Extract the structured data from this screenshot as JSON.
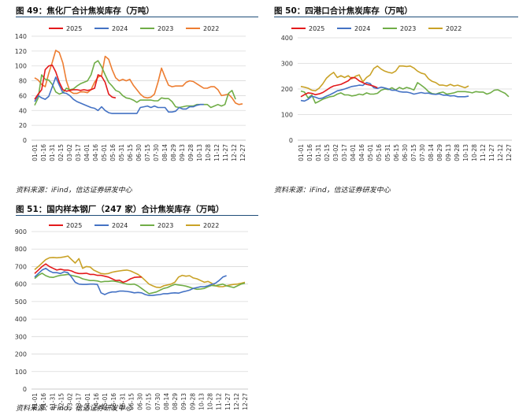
{
  "charts": [
    {
      "figure_title": "图 49：焦化厂合计焦炭库存（万吨）",
      "source": "资料来源：iFind，信达证券研发中心"
    },
    {
      "figure_title": "图 50：四港口合计焦炭库存（万吨）",
      "source": "资料来源：iFind，信达证券研发中心"
    },
    {
      "figure_title": "图 51：国内样本钢厂（247 家）合计焦炭库存（万吨）",
      "source": "资料来源：iFind，信达证券研发中心"
    }
  ],
  "chart_data": [
    {
      "type": "line",
      "title": "图 49：焦化厂合计焦炭库存（万吨）",
      "xlabel": "",
      "ylabel": "",
      "ylim": [
        0,
        140
      ],
      "yticks": [
        0,
        20,
        40,
        60,
        80,
        100,
        120,
        140
      ],
      "grid": true,
      "legend": "top-left",
      "xticks": [
        "01-01",
        "01-16",
        "01-31",
        "02-15",
        "03-02",
        "03-17",
        "04-01",
        "04-16",
        "05-01",
        "05-16",
        "05-31",
        "06-15",
        "06-30",
        "07-15",
        "07-30",
        "08-14",
        "08-29",
        "09-13",
        "09-28",
        "10-13",
        "10-28",
        "11-12",
        "11-27",
        "12-12",
        "12-27"
      ],
      "series": [
        {
          "name": "2025",
          "color": "#e31a1c",
          "values": [
            55,
            62,
            68,
            95,
            100,
            101,
            92,
            78,
            68,
            66,
            67,
            68,
            68,
            67,
            68,
            67,
            68,
            70,
            88,
            86,
            78,
            62,
            58,
            57
          ]
        },
        {
          "name": "2024",
          "color": "#4472c4",
          "values": [
            52,
            60,
            57,
            55,
            59,
            72,
            85,
            74,
            64,
            63,
            60,
            55,
            52,
            50,
            48,
            46,
            44,
            43,
            40,
            45,
            40,
            37,
            36,
            36,
            36,
            36,
            36,
            36,
            36,
            36,
            44,
            45,
            46,
            44,
            46,
            44,
            44,
            44,
            38,
            38,
            39,
            44,
            42,
            42,
            45,
            45,
            47,
            48,
            48
          ]
        },
        {
          "name": "2023",
          "color": "#70ad47",
          "values": [
            47,
            57,
            88,
            82,
            81,
            75,
            65,
            62,
            64,
            70,
            68,
            69,
            73,
            76,
            78,
            80,
            88,
            104,
            107,
            99,
            88,
            78,
            73,
            67,
            65,
            60,
            57,
            56,
            54,
            51,
            54,
            54,
            54,
            54,
            53,
            53,
            57,
            56,
            56,
            52,
            45,
            44,
            45,
            46,
            46,
            46,
            48,
            48,
            48,
            48,
            44,
            46,
            48,
            46,
            48,
            63,
            67,
            55
          ]
        },
        {
          "name": "2022",
          "color": "#ed7d31",
          "values": [
            84,
            81,
            75,
            72,
            90,
            105,
            121,
            118,
            104,
            80,
            66,
            63,
            63,
            65,
            65,
            64,
            68,
            78,
            85,
            87,
            113,
            109,
            95,
            84,
            80,
            82,
            80,
            82,
            74,
            68,
            62,
            58,
            57,
            58,
            62,
            78,
            97,
            85,
            74,
            72,
            73,
            73,
            73,
            78,
            80,
            79,
            76,
            73,
            70,
            70,
            72,
            72,
            68,
            60,
            61,
            62,
            57,
            50,
            48,
            49
          ]
        }
      ]
    },
    {
      "type": "line",
      "title": "图 50：四港口合计焦炭库存（万吨）",
      "xlabel": "",
      "ylabel": "",
      "ylim": [
        0,
        400
      ],
      "yticks": [
        0,
        100,
        200,
        300,
        400
      ],
      "grid": true,
      "legend": "top-left",
      "xticks": [
        "01-01",
        "01-16",
        "01-31",
        "02-15",
        "03-02",
        "03-17",
        "04-01",
        "04-16",
        "05-01",
        "05-16",
        "05-31",
        "06-15",
        "06-30",
        "07-15",
        "07-30",
        "08-14",
        "08-29",
        "09-13",
        "09-28",
        "10-13",
        "10-28",
        "11-12",
        "11-27",
        "12-12",
        "12-27"
      ],
      "series": [
        {
          "name": "2025",
          "color": "#e31a1c",
          "values": [
            170,
            178,
            185,
            183,
            178,
            181,
            186,
            195,
            205,
            212,
            215,
            218,
            225,
            232,
            245,
            243,
            232,
            225,
            218,
            215,
            211,
            205
          ]
        },
        {
          "name": "2024",
          "color": "#4472c4",
          "values": [
            155,
            153,
            160,
            172,
            168,
            162,
            165,
            172,
            178,
            185,
            193,
            196,
            200,
            205,
            210,
            212,
            215,
            214,
            225,
            221,
            205,
            202,
            207,
            204,
            200,
            195,
            195,
            190,
            188,
            188,
            185,
            180,
            183,
            186,
            183,
            184,
            180,
            179,
            181,
            176,
            176,
            173,
            174,
            170,
            170,
            170,
            172
          ]
        },
        {
          "name": "2023",
          "color": "#70ad47",
          "values": [
            192,
            188,
            165,
            177,
            145,
            152,
            160,
            165,
            170,
            172,
            180,
            185,
            177,
            177,
            173,
            175,
            180,
            177,
            185,
            180,
            180,
            183,
            195,
            200,
            198,
            205,
            196,
            206,
            200,
            206,
            202,
            196,
            225,
            215,
            204,
            190,
            182,
            180,
            185,
            188,
            180,
            182,
            185,
            190,
            190,
            190,
            188,
            185,
            190,
            188,
            188,
            180,
            185,
            195,
            197,
            190,
            183,
            170
          ]
        },
        {
          "name": "2022",
          "color": "#c9a227",
          "values": [
            210,
            207,
            203,
            195,
            193,
            203,
            220,
            242,
            255,
            265,
            245,
            252,
            245,
            252,
            240,
            250,
            255,
            228,
            245,
            255,
            280,
            290,
            278,
            270,
            265,
            262,
            270,
            290,
            290,
            288,
            290,
            282,
            270,
            262,
            258,
            240,
            230,
            225,
            215,
            215,
            212,
            218,
            212,
            215,
            210,
            205,
            212
          ]
        }
      ]
    },
    {
      "type": "line",
      "title": "图 51：国内样本钢厂（247 家）合计焦炭库存（万吨）",
      "xlabel": "",
      "ylabel": "",
      "ylim": [
        0,
        900
      ],
      "yticks": [
        0,
        100,
        200,
        300,
        400,
        500,
        600,
        700,
        800,
        900
      ],
      "grid": true,
      "legend": "top-left",
      "xticks": [
        "01-01",
        "01-16",
        "01-31",
        "02-15",
        "03-02",
        "03-17",
        "04-01",
        "04-16",
        "05-01",
        "05-16",
        "05-31",
        "06-15",
        "06-30",
        "07-15",
        "07-30",
        "08-14",
        "08-29",
        "09-13",
        "09-28",
        "10-13",
        "10-28",
        "11-12",
        "11-27",
        "12-12",
        "12-27"
      ],
      "series": [
        {
          "name": "2025",
          "color": "#e31a1c",
          "values": [
            660,
            680,
            700,
            715,
            700,
            690,
            680,
            685,
            680,
            680,
            675,
            665,
            660,
            660,
            662,
            655,
            655,
            650,
            650,
            645,
            640,
            630,
            620,
            622,
            610,
            618,
            630,
            638,
            640,
            640
          ]
        },
        {
          "name": "2024",
          "color": "#4472c4",
          "values": [
            640,
            660,
            680,
            690,
            675,
            665,
            665,
            660,
            670,
            665,
            640,
            610,
            600,
            598,
            598,
            600,
            600,
            598,
            550,
            540,
            550,
            555,
            555,
            560,
            560,
            558,
            555,
            550,
            552,
            550,
            540,
            535,
            535,
            538,
            540,
            545,
            545,
            548,
            550,
            548,
            555,
            560,
            565,
            575,
            580,
            585,
            585,
            590,
            598,
            605,
            620,
            640,
            648
          ]
        },
        {
          "name": "2023",
          "color": "#70ad47",
          "values": [
            632,
            650,
            662,
            648,
            640,
            638,
            645,
            650,
            652,
            655,
            650,
            645,
            640,
            630,
            625,
            620,
            620,
            618,
            612,
            615,
            615,
            618,
            615,
            610,
            605,
            600,
            598,
            600,
            590,
            575,
            560,
            545,
            550,
            555,
            565,
            575,
            580,
            590,
            598,
            595,
            592,
            588,
            582,
            575,
            570,
            572,
            575,
            585,
            592,
            590,
            595,
            600,
            590,
            585,
            580,
            590,
            600,
            605
          ]
        },
        {
          "name": "2022",
          "color": "#c9a227",
          "values": [
            682,
            700,
            720,
            740,
            750,
            752,
            750,
            752,
            755,
            760,
            740,
            720,
            745,
            690,
            700,
            698,
            680,
            670,
            660,
            658,
            660,
            668,
            672,
            675,
            678,
            680,
            675,
            665,
            655,
            640,
            620,
            600,
            590,
            582,
            580,
            590,
            595,
            600,
            610,
            640,
            650,
            645,
            648,
            635,
            630,
            620,
            610,
            615,
            605,
            590,
            585,
            585,
            590,
            595,
            598,
            600,
            605,
            610
          ]
        }
      ]
    }
  ]
}
